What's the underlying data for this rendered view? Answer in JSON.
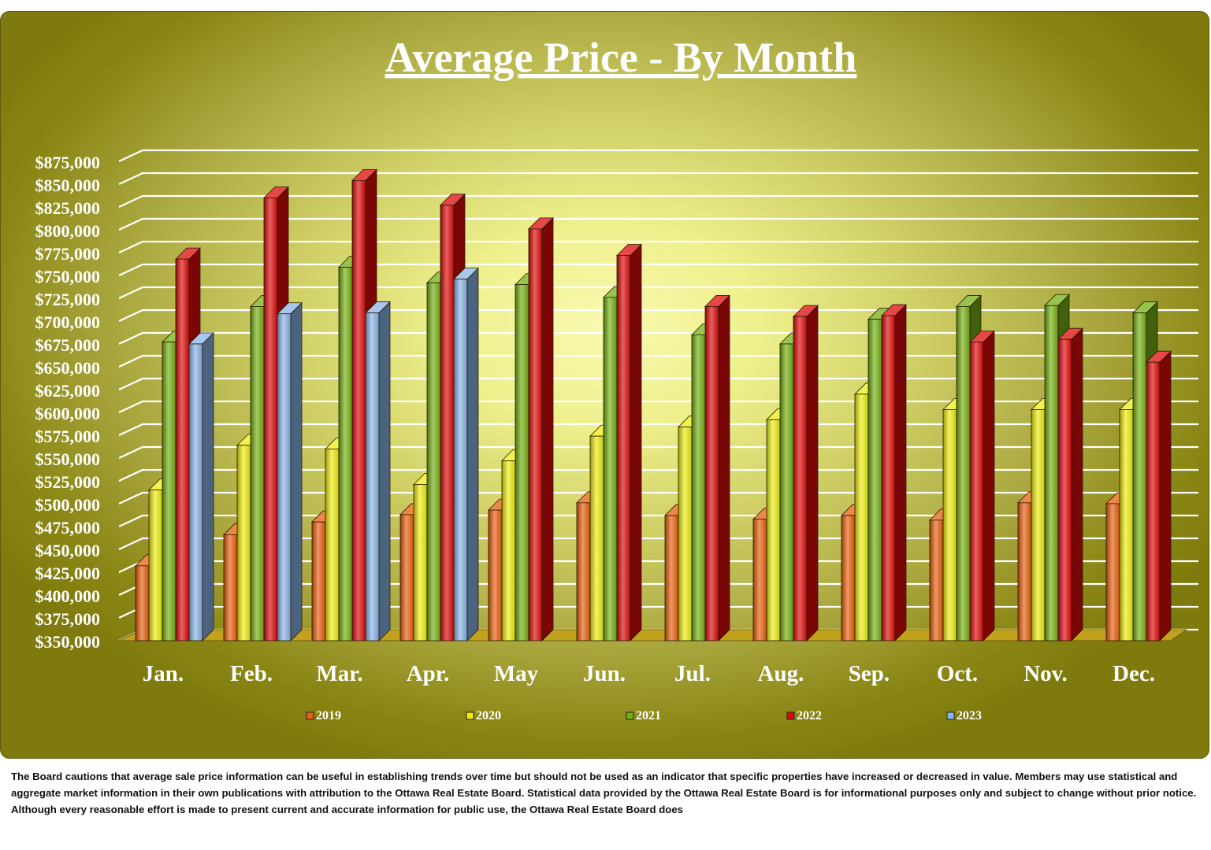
{
  "disclaimer": "The Board cautions that average sale price information can be useful in establishing trends over time but should not be used as an indicator that specific properties have increased or decreased in value.  Members may use statistical and aggregate market information in their own publications with attribution to the Ottawa Real Estate Board. Statistical data provided by the Ottawa Real Estate Board is for informational purposes only and subject to change without prior notice. Although every reasonable effort is made to present current and accurate information for public use, the Ottawa Real Estate Board does",
  "chart_data": {
    "type": "bar",
    "title": "Average Price - By Month",
    "categories": [
      "Jan.",
      "Feb.",
      "Mar.",
      "Apr.",
      "May",
      "Jun.",
      "Jul.",
      "Aug.",
      "Sep.",
      "Oct.",
      "Nov.",
      "Dec."
    ],
    "ylim": [
      350000,
      875000
    ],
    "ytick_step": 25000,
    "y_ticks": [
      "$350,000",
      "$375,000",
      "$400,000",
      "$425,000",
      "$450,000",
      "$475,000",
      "$500,000",
      "$525,000",
      "$550,000",
      "$575,000",
      "$600,000",
      "$625,000",
      "$650,000",
      "$675,000",
      "$700,000",
      "$725,000",
      "$750,000",
      "$775,000",
      "$800,000",
      "$825,000",
      "$850,000",
      "$875,000"
    ],
    "grid": true,
    "legend_position": "bottom",
    "series": [
      {
        "name": "2019",
        "color": "#e8600e",
        "values": [
          432000,
          466000,
          480000,
          488000,
          493000,
          501000,
          487000,
          483000,
          487000,
          482000,
          501000,
          500000
        ]
      },
      {
        "name": "2020",
        "color": "#eeee10",
        "values": [
          515000,
          564000,
          560000,
          521000,
          547000,
          574000,
          584000,
          592000,
          620000,
          603000,
          603000,
          603000
        ]
      },
      {
        "name": "2021",
        "color": "#74b010",
        "values": [
          677000,
          716000,
          759000,
          742000,
          740000,
          726000,
          685000,
          675000,
          702000,
          716000,
          717000,
          709000
        ]
      },
      {
        "name": "2022",
        "color": "#dd0a0a",
        "values": [
          768000,
          835000,
          854000,
          827000,
          801000,
          772000,
          716000,
          705000,
          706000,
          677000,
          680000,
          655000
        ]
      },
      {
        "name": "2023",
        "color": "#8ab4e8",
        "values": [
          675000,
          708000,
          709000,
          746000,
          null,
          null,
          null,
          null,
          null,
          null,
          null,
          null
        ]
      }
    ]
  }
}
